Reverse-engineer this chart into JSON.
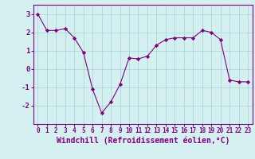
{
  "x": [
    0,
    1,
    2,
    3,
    4,
    5,
    6,
    7,
    8,
    9,
    10,
    11,
    12,
    13,
    14,
    15,
    16,
    17,
    18,
    19,
    20,
    21,
    22,
    23
  ],
  "y": [
    3.0,
    2.1,
    2.1,
    2.2,
    1.7,
    0.9,
    -1.1,
    -2.4,
    -1.8,
    -0.85,
    0.6,
    0.55,
    0.7,
    1.3,
    1.6,
    1.7,
    1.7,
    1.7,
    2.1,
    2.0,
    1.6,
    -0.6,
    -0.7,
    -0.7
  ],
  "line_color": "#800080",
  "marker": "D",
  "marker_size": 2.2,
  "bg_color": "#d4f0f0",
  "grid_color": "#acd8d8",
  "xlabel": "Windchill (Refroidissement éolien,°C)",
  "xlabel_color": "#800080",
  "ylim": [
    -3,
    3.5
  ],
  "xlim": [
    -0.5,
    23.5
  ],
  "yticks": [
    -2,
    -1,
    0,
    1,
    2,
    3
  ],
  "xticks": [
    0,
    1,
    2,
    3,
    4,
    5,
    6,
    7,
    8,
    9,
    10,
    11,
    12,
    13,
    14,
    15,
    16,
    17,
    18,
    19,
    20,
    21,
    22,
    23
  ],
  "tick_color": "#800080",
  "tick_fontsize": 5.5,
  "xlabel_fontsize": 7.0,
  "spine_color": "#800080"
}
